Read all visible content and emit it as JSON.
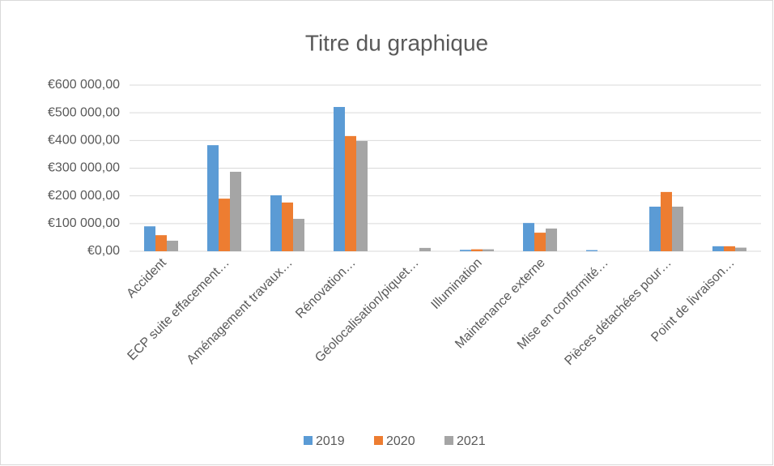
{
  "chart_data": {
    "type": "bar",
    "title": "Titre du graphique",
    "categories": [
      "Accident",
      "ECP suite effacement…",
      "Aménagement travaux…",
      "Rénovation…",
      "Géolocalisation/piquet…",
      "Illumination",
      "Maintenance externe",
      "Mise en conformité…",
      "Pièces détachées pour…",
      "Point de livraison…"
    ],
    "series": [
      {
        "name": "2019",
        "color": "#5b9bd5",
        "values": [
          90000,
          383000,
          202000,
          521000,
          0,
          5000,
          102000,
          4000,
          161000,
          18000
        ]
      },
      {
        "name": "2020",
        "color": "#ed7d31",
        "values": [
          58000,
          190000,
          176000,
          416000,
          0,
          7000,
          67000,
          0,
          214000,
          18000
        ]
      },
      {
        "name": "2021",
        "color": "#a5a5a5",
        "values": [
          38000,
          287000,
          117000,
          398000,
          12000,
          7000,
          82000,
          0,
          161000,
          13000
        ]
      }
    ],
    "ylim": [
      0,
      600000
    ],
    "yticks": [
      {
        "value": 0,
        "label": "€0,00"
      },
      {
        "value": 100000,
        "label": "€100 000,00"
      },
      {
        "value": 200000,
        "label": "€200 000,00"
      },
      {
        "value": 300000,
        "label": "€300 000,00"
      },
      {
        "value": 400000,
        "label": "€400 000,00"
      },
      {
        "value": 500000,
        "label": "€500 000,00"
      },
      {
        "value": 600000,
        "label": "€600 000,00"
      }
    ],
    "grid": true,
    "legend": "bottom"
  }
}
